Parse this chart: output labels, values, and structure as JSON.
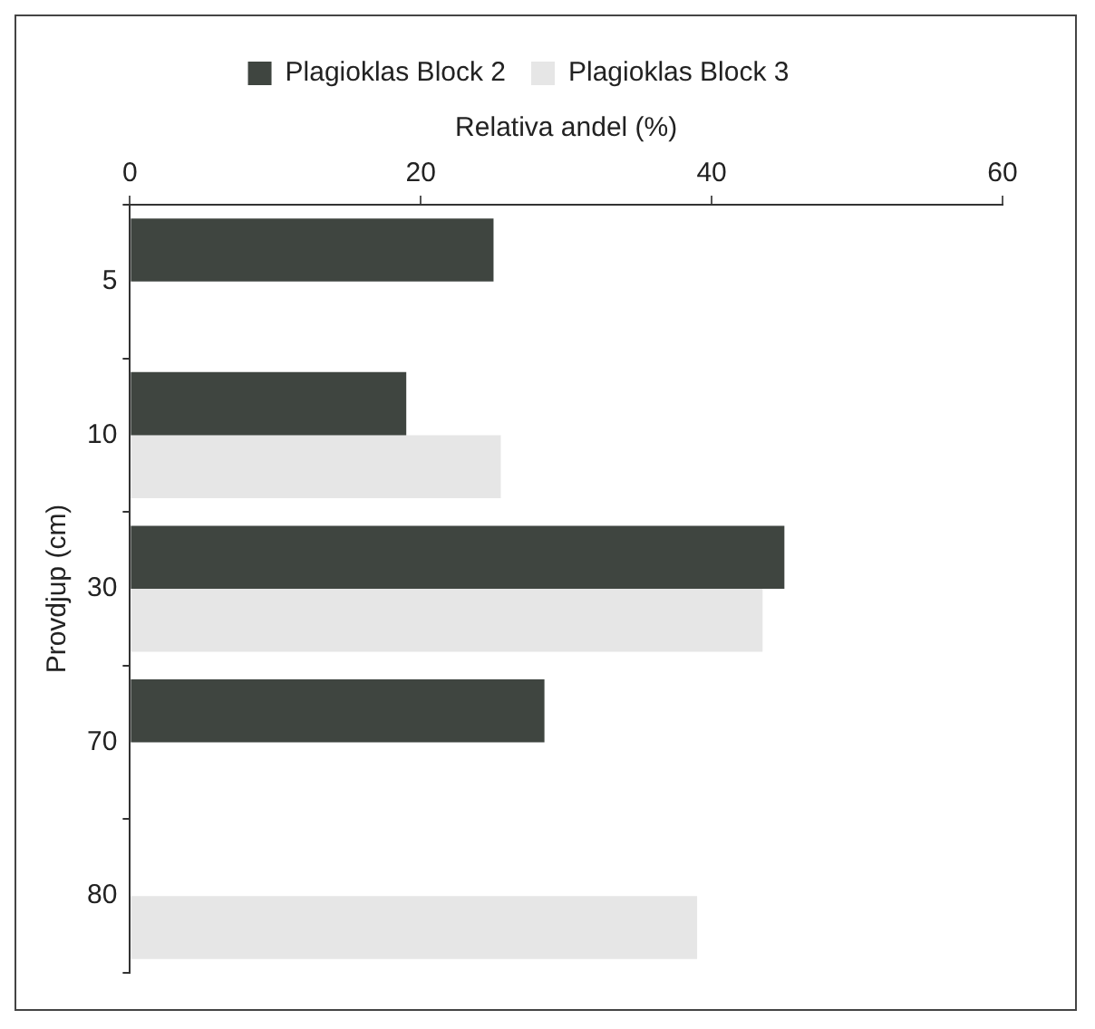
{
  "chart_data": {
    "type": "bar",
    "orientation": "horizontal",
    "xlabel": "Relativa andel (%)",
    "ylabel": "Provdjup (cm)",
    "categories": [
      "5",
      "10",
      "30",
      "70",
      "80"
    ],
    "series": [
      {
        "name": "Plagioklas Block 2",
        "color": "#3f4540",
        "values": [
          25,
          19,
          45,
          28.5,
          null
        ]
      },
      {
        "name": "Plagioklas Block 3",
        "color": "#e6e6e6",
        "values": [
          null,
          25.5,
          43.5,
          null,
          39
        ]
      }
    ],
    "xlim": [
      0,
      60
    ],
    "xticks": [
      0,
      20,
      40,
      60
    ],
    "grid": false,
    "legend": "top"
  }
}
